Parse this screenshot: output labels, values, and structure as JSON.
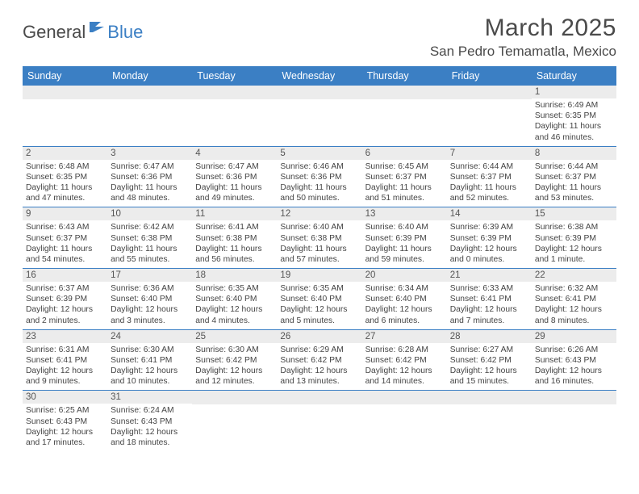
{
  "logo": {
    "general": "General",
    "blue": "Blue"
  },
  "title": "March 2025",
  "location": "San Pedro Temamatla, Mexico",
  "headers": [
    "Sunday",
    "Monday",
    "Tuesday",
    "Wednesday",
    "Thursday",
    "Friday",
    "Saturday"
  ],
  "colors": {
    "accent": "#3b7fc4",
    "bg": "#ffffff",
    "gray_row": "#ececec",
    "text": "#4a4a4a"
  },
  "weeks": [
    [
      null,
      null,
      null,
      null,
      null,
      null,
      {
        "n": "1",
        "sr": "6:49 AM",
        "ss": "6:35 PM",
        "dl": "11 hours and 46 minutes."
      }
    ],
    [
      {
        "n": "2",
        "sr": "6:48 AM",
        "ss": "6:35 PM",
        "dl": "11 hours and 47 minutes."
      },
      {
        "n": "3",
        "sr": "6:47 AM",
        "ss": "6:36 PM",
        "dl": "11 hours and 48 minutes."
      },
      {
        "n": "4",
        "sr": "6:47 AM",
        "ss": "6:36 PM",
        "dl": "11 hours and 49 minutes."
      },
      {
        "n": "5",
        "sr": "6:46 AM",
        "ss": "6:36 PM",
        "dl": "11 hours and 50 minutes."
      },
      {
        "n": "6",
        "sr": "6:45 AM",
        "ss": "6:37 PM",
        "dl": "11 hours and 51 minutes."
      },
      {
        "n": "7",
        "sr": "6:44 AM",
        "ss": "6:37 PM",
        "dl": "11 hours and 52 minutes."
      },
      {
        "n": "8",
        "sr": "6:44 AM",
        "ss": "6:37 PM",
        "dl": "11 hours and 53 minutes."
      }
    ],
    [
      {
        "n": "9",
        "sr": "6:43 AM",
        "ss": "6:37 PM",
        "dl": "11 hours and 54 minutes."
      },
      {
        "n": "10",
        "sr": "6:42 AM",
        "ss": "6:38 PM",
        "dl": "11 hours and 55 minutes."
      },
      {
        "n": "11",
        "sr": "6:41 AM",
        "ss": "6:38 PM",
        "dl": "11 hours and 56 minutes."
      },
      {
        "n": "12",
        "sr": "6:40 AM",
        "ss": "6:38 PM",
        "dl": "11 hours and 57 minutes."
      },
      {
        "n": "13",
        "sr": "6:40 AM",
        "ss": "6:39 PM",
        "dl": "11 hours and 59 minutes."
      },
      {
        "n": "14",
        "sr": "6:39 AM",
        "ss": "6:39 PM",
        "dl": "12 hours and 0 minutes."
      },
      {
        "n": "15",
        "sr": "6:38 AM",
        "ss": "6:39 PM",
        "dl": "12 hours and 1 minute."
      }
    ],
    [
      {
        "n": "16",
        "sr": "6:37 AM",
        "ss": "6:39 PM",
        "dl": "12 hours and 2 minutes."
      },
      {
        "n": "17",
        "sr": "6:36 AM",
        "ss": "6:40 PM",
        "dl": "12 hours and 3 minutes."
      },
      {
        "n": "18",
        "sr": "6:35 AM",
        "ss": "6:40 PM",
        "dl": "12 hours and 4 minutes."
      },
      {
        "n": "19",
        "sr": "6:35 AM",
        "ss": "6:40 PM",
        "dl": "12 hours and 5 minutes."
      },
      {
        "n": "20",
        "sr": "6:34 AM",
        "ss": "6:40 PM",
        "dl": "12 hours and 6 minutes."
      },
      {
        "n": "21",
        "sr": "6:33 AM",
        "ss": "6:41 PM",
        "dl": "12 hours and 7 minutes."
      },
      {
        "n": "22",
        "sr": "6:32 AM",
        "ss": "6:41 PM",
        "dl": "12 hours and 8 minutes."
      }
    ],
    [
      {
        "n": "23",
        "sr": "6:31 AM",
        "ss": "6:41 PM",
        "dl": "12 hours and 9 minutes."
      },
      {
        "n": "24",
        "sr": "6:30 AM",
        "ss": "6:41 PM",
        "dl": "12 hours and 10 minutes."
      },
      {
        "n": "25",
        "sr": "6:30 AM",
        "ss": "6:42 PM",
        "dl": "12 hours and 12 minutes."
      },
      {
        "n": "26",
        "sr": "6:29 AM",
        "ss": "6:42 PM",
        "dl": "12 hours and 13 minutes."
      },
      {
        "n": "27",
        "sr": "6:28 AM",
        "ss": "6:42 PM",
        "dl": "12 hours and 14 minutes."
      },
      {
        "n": "28",
        "sr": "6:27 AM",
        "ss": "6:42 PM",
        "dl": "12 hours and 15 minutes."
      },
      {
        "n": "29",
        "sr": "6:26 AM",
        "ss": "6:43 PM",
        "dl": "12 hours and 16 minutes."
      }
    ],
    [
      {
        "n": "30",
        "sr": "6:25 AM",
        "ss": "6:43 PM",
        "dl": "12 hours and 17 minutes."
      },
      {
        "n": "31",
        "sr": "6:24 AM",
        "ss": "6:43 PM",
        "dl": "12 hours and 18 minutes."
      },
      null,
      null,
      null,
      null,
      null
    ]
  ],
  "labels": {
    "sunrise": "Sunrise:",
    "sunset": "Sunset:",
    "daylight": "Daylight:"
  }
}
